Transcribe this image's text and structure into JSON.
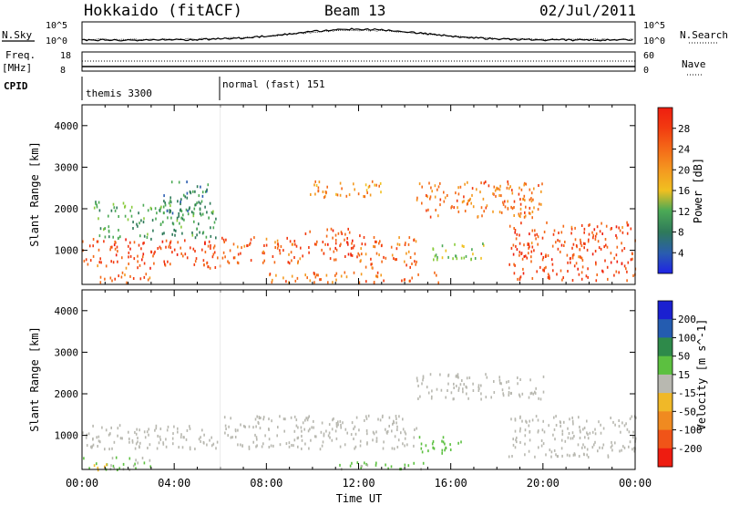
{
  "header": {
    "title": "Hokkaido (fitACF)",
    "beam": "Beam 13",
    "date": "02/Jul/2011"
  },
  "top_panels": {
    "nsky_label": "N.Sky",
    "nsky_ticks": [
      "10^5",
      "10^0"
    ],
    "nsearch_label": "N.Search",
    "nsearch_ticks": [
      "10^5",
      "10^0"
    ],
    "freq_label": "Freq.",
    "freq_unit": "[MHz]",
    "freq_ticks": [
      "18",
      "8"
    ],
    "nave_label": "Nave",
    "nave_ticks": [
      "60",
      "0"
    ],
    "cpid_label": "CPID",
    "cpid_modes": [
      "themis 3300",
      "normal (fast) 151"
    ]
  },
  "colors": {
    "power": [
      "#1e22e6",
      "#2a5cb0",
      "#2f7a5a",
      "#4caa55",
      "#8acb3c",
      "#f0c020",
      "#f49a20",
      "#f46a18",
      "#f23a10",
      "#ee1e10"
    ],
    "velocity": [
      "#1a20d0",
      "#245cb0",
      "#2e8a4a",
      "#5cc040",
      "#b8b8b0",
      "#f0b828",
      "#f08a20",
      "#f05418",
      "#ee1c10"
    ],
    "ground_scatter": "#b8b8b0"
  },
  "chart_data": [
    {
      "type": "heatmap",
      "panel": "power",
      "ylabel": "Slant Range [km]",
      "xlabel": "",
      "ylim": [
        180,
        4500
      ],
      "xlim": [
        "00:00",
        "24:00"
      ],
      "yticks": [
        1000,
        2000,
        3000,
        4000
      ],
      "colorbar_label": "Power [dB]",
      "colorbar_ticks": [
        4,
        8,
        12,
        16,
        20,
        24,
        28
      ],
      "colorbar_range": [
        0,
        32
      ],
      "scatter_regions": [
        {
          "t": [
            0.0,
            6.0
          ],
          "r": [
            600,
            1300
          ],
          "level": 27
        },
        {
          "t": [
            0.5,
            5.8
          ],
          "r": [
            1300,
            2200
          ],
          "level": 10
        },
        {
          "t": [
            3.5,
            5.5
          ],
          "r": [
            1900,
            2700
          ],
          "level": 8
        },
        {
          "t": [
            6.0,
            9.5
          ],
          "r": [
            700,
            1350
          ],
          "level": 26
        },
        {
          "t": [
            9.5,
            12.0
          ],
          "r": [
            800,
            1550
          ],
          "level": 27
        },
        {
          "t": [
            12.0,
            14.5
          ],
          "r": [
            600,
            1400
          ],
          "level": 25
        },
        {
          "t": [
            9.5,
            13.0
          ],
          "r": [
            2300,
            2700
          ],
          "level": 22
        },
        {
          "t": [
            14.5,
            20.0
          ],
          "r": [
            1800,
            2700
          ],
          "level": 24
        },
        {
          "t": [
            15.0,
            17.5
          ],
          "r": [
            800,
            1200
          ],
          "level": 14
        },
        {
          "t": [
            18.5,
            24.0
          ],
          "r": [
            300,
            1700
          ],
          "level": 27
        },
        {
          "t": [
            0.5,
            3.0
          ],
          "r": [
            250,
            500
          ],
          "level": 26
        },
        {
          "t": [
            8.0,
            15.5
          ],
          "r": [
            250,
            500
          ],
          "level": 24
        }
      ]
    },
    {
      "type": "heatmap",
      "panel": "velocity",
      "ylabel": "Slant Range [km]",
      "xlabel": "Time UT",
      "ylim": [
        180,
        4500
      ],
      "xlim": [
        "00:00",
        "24:00"
      ],
      "xticks": [
        "00:00",
        "04:00",
        "08:00",
        "12:00",
        "16:00",
        "20:00",
        "00:00"
      ],
      "yticks": [
        1000,
        2000,
        3000,
        4000
      ],
      "colorbar_label": "Velocity [m s^-1]",
      "colorbar_ticks": [
        200,
        100,
        50,
        15,
        -15,
        -50,
        -100,
        -200
      ],
      "colorbar_range": [
        -250,
        250
      ],
      "scatter_regions": [
        {
          "t": [
            0.0,
            6.0
          ],
          "r": [
            700,
            1300
          ],
          "v": 0
        },
        {
          "t": [
            6.0,
            14.5
          ],
          "r": [
            700,
            1500
          ],
          "v": 0
        },
        {
          "t": [
            14.5,
            20.0
          ],
          "r": [
            1900,
            2500
          ],
          "v": 0
        },
        {
          "t": [
            18.5,
            24.0
          ],
          "r": [
            500,
            1500
          ],
          "v": 0
        },
        {
          "t": [
            0.0,
            3.0
          ],
          "r": [
            200,
            500
          ],
          "v": 30
        },
        {
          "t": [
            14.5,
            16.5
          ],
          "r": [
            600,
            1000
          ],
          "v": 60
        },
        {
          "t": [
            11.0,
            15.0
          ],
          "r": [
            200,
            400
          ],
          "v": 40
        },
        {
          "t": [
            0.5,
            1.5
          ],
          "r": [
            180,
            350
          ],
          "v": -40
        }
      ]
    }
  ]
}
